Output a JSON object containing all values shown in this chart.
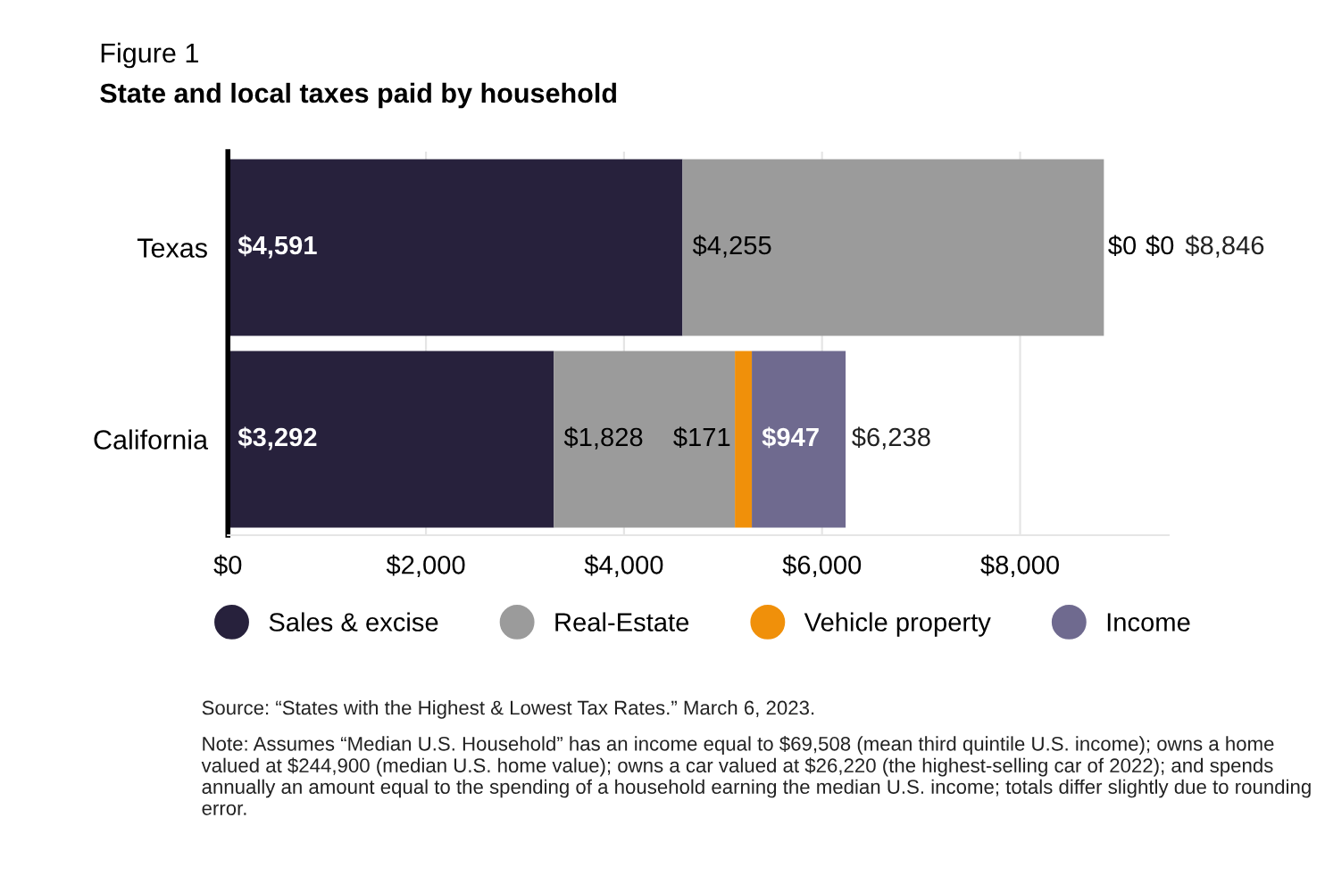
{
  "chart_data": {
    "type": "bar",
    "orientation": "horizontal",
    "stacked": true,
    "title": "Figure 1",
    "subtitle": "State and local taxes paid by household",
    "categories": [
      "Texas",
      "California"
    ],
    "series": [
      {
        "name": "Sales & excise",
        "color": "#27213c",
        "values": [
          4591,
          3292
        ],
        "value_labels": [
          "$4,591",
          "$3,292"
        ]
      },
      {
        "name": "Real-Estate",
        "color": "#9b9b9b",
        "values": [
          4255,
          1828
        ],
        "value_labels": [
          "$4,255",
          "$1,828"
        ]
      },
      {
        "name": "Vehicle property",
        "color": "#f0900a",
        "values": [
          0,
          171
        ],
        "value_labels": [
          "$0",
          "$171"
        ]
      },
      {
        "name": "Income",
        "color": "#6f6a8f",
        "values": [
          0,
          947
        ],
        "value_labels": [
          "$0",
          "$947"
        ]
      }
    ],
    "totals": [
      "$8,846",
      "$6,238"
    ],
    "xlim": [
      0,
      9500
    ],
    "xticks": [
      {
        "value": 0,
        "label": "$0"
      },
      {
        "value": 2000,
        "label": "$2,000"
      },
      {
        "value": 4000,
        "label": "$4,000"
      },
      {
        "value": 6000,
        "label": "$6,000"
      },
      {
        "value": 8000,
        "label": "$8,000"
      }
    ],
    "grid": "x",
    "legend": "bottom",
    "annotations": [
      "Source: “States with the Highest & Lowest Tax Rates.” March 6, 2023.",
      "Note: Assumes “Median U.S. Household” has an income equal to $69,508 (mean third quintile U.S. income); owns a home valued at $244,900 (median U.S. home value); owns a car valued at $26,220 (the highest-selling car of 2022); and spends annually an amount equal to the spending of a household earning the median U.S. income; totals differ slightly due to rounding error."
    ]
  }
}
